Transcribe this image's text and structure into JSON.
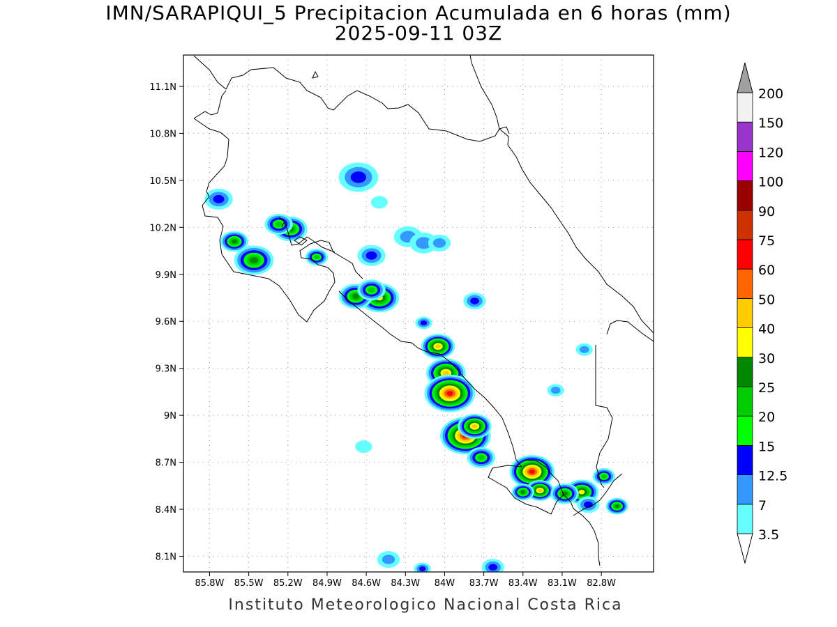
{
  "title": "IMN/SARAPIQUI_5 Precipitacion Acumulada en 6 horas (mm)",
  "subtitle": "2025-09-11 03Z",
  "footer": "Instituto Meteorologico Nacional Costa Rica",
  "map": {
    "lon_range": [
      -86.0,
      -82.4
    ],
    "lat_range": [
      8.0,
      11.3
    ],
    "x_ticks": [
      "85.8W",
      "85.5W",
      "85.2W",
      "84.9W",
      "84.6W",
      "84.3W",
      "84W",
      "83.7W",
      "83.4W",
      "83.1W",
      "82.8W"
    ],
    "y_ticks": [
      "11.1N",
      "10.8N",
      "10.5N",
      "10.2N",
      "9.9N",
      "9.6N",
      "9.3N",
      "9N",
      "8.7N",
      "8.4N",
      "8.1N"
    ],
    "x_tick_values": [
      -85.8,
      -85.5,
      -85.2,
      -84.9,
      -84.6,
      -84.3,
      -84.0,
      -83.7,
      -83.4,
      -83.1,
      -82.8
    ],
    "y_tick_values": [
      11.1,
      10.8,
      10.5,
      10.2,
      9.9,
      9.6,
      9.3,
      9.0,
      8.7,
      8.4,
      8.1
    ],
    "grid": "dotted"
  },
  "colorbar": {
    "levels": [
      "3.5",
      "7",
      "12.5",
      "15",
      "20",
      "25",
      "30",
      "40",
      "50",
      "60",
      "75",
      "90",
      "100",
      "120",
      "150",
      "200"
    ],
    "colors": [
      "#66ffff",
      "#3399ff",
      "#0000ff",
      "#00ff00",
      "#00cc00",
      "#008800",
      "#ffff00",
      "#ffcc00",
      "#ff6600",
      "#ff0000",
      "#cc3300",
      "#990000",
      "#ff00ff",
      "#9933cc",
      "#f2f2f2",
      "#a0a0a0"
    ]
  },
  "rain_cells": [
    {
      "lon": -85.46,
      "lat": 9.99,
      "peak": 25,
      "size": 0.07
    },
    {
      "lon": -85.61,
      "lat": 10.11,
      "peak": 25,
      "size": 0.05
    },
    {
      "lon": -85.18,
      "lat": 10.19,
      "peak": 25,
      "size": 0.06
    },
    {
      "lon": -85.27,
      "lat": 10.22,
      "peak": 20,
      "size": 0.05
    },
    {
      "lon": -85.73,
      "lat": 10.38,
      "peak": 12.5,
      "size": 0.05
    },
    {
      "lon": -84.66,
      "lat": 10.52,
      "peak": 12.5,
      "size": 0.07
    },
    {
      "lon": -84.98,
      "lat": 10.01,
      "peak": 20,
      "size": 0.04
    },
    {
      "lon": -84.56,
      "lat": 10.02,
      "peak": 12.5,
      "size": 0.05
    },
    {
      "lon": -84.28,
      "lat": 10.14,
      "peak": 7,
      "size": 0.05
    },
    {
      "lon": -84.5,
      "lat": 9.75,
      "peak": 30,
      "size": 0.07
    },
    {
      "lon": -84.68,
      "lat": 9.76,
      "peak": 25,
      "size": 0.06
    },
    {
      "lon": -84.56,
      "lat": 9.8,
      "peak": 20,
      "size": 0.05
    },
    {
      "lon": -83.77,
      "lat": 9.73,
      "peak": 12.5,
      "size": 0.04
    },
    {
      "lon": -84.16,
      "lat": 9.59,
      "peak": 12.5,
      "size": 0.03
    },
    {
      "lon": -84.05,
      "lat": 9.44,
      "peak": 40,
      "size": 0.06
    },
    {
      "lon": -83.99,
      "lat": 9.27,
      "peak": 40,
      "size": 0.07
    },
    {
      "lon": -83.96,
      "lat": 9.14,
      "peak": 60,
      "size": 0.09
    },
    {
      "lon": -83.84,
      "lat": 8.87,
      "peak": 60,
      "size": 0.09
    },
    {
      "lon": -83.77,
      "lat": 8.93,
      "peak": 40,
      "size": 0.06
    },
    {
      "lon": -83.72,
      "lat": 8.73,
      "peak": 20,
      "size": 0.05
    },
    {
      "lon": -83.33,
      "lat": 8.64,
      "peak": 60,
      "size": 0.08
    },
    {
      "lon": -83.27,
      "lat": 8.52,
      "peak": 40,
      "size": 0.05
    },
    {
      "lon": -83.4,
      "lat": 8.51,
      "peak": 25,
      "size": 0.04
    },
    {
      "lon": -82.95,
      "lat": 8.51,
      "peak": 30,
      "size": 0.06
    },
    {
      "lon": -83.08,
      "lat": 8.5,
      "peak": 25,
      "size": 0.05
    },
    {
      "lon": -82.78,
      "lat": 8.61,
      "peak": 20,
      "size": 0.04
    },
    {
      "lon": -82.68,
      "lat": 8.42,
      "peak": 25,
      "size": 0.04
    },
    {
      "lon": -82.9,
      "lat": 8.43,
      "peak": 12.5,
      "size": 0.04
    },
    {
      "lon": -84.16,
      "lat": 10.1,
      "peak": 7,
      "size": 0.05
    },
    {
      "lon": -84.04,
      "lat": 10.1,
      "peak": 7,
      "size": 0.04
    },
    {
      "lon": -83.63,
      "lat": 8.03,
      "peak": 12.5,
      "size": 0.04
    },
    {
      "lon": -84.43,
      "lat": 8.08,
      "peak": 7,
      "size": 0.04
    },
    {
      "lon": -84.17,
      "lat": 8.02,
      "peak": 12.5,
      "size": 0.03
    },
    {
      "lon": -83.15,
      "lat": 9.16,
      "peak": 7,
      "size": 0.03
    },
    {
      "lon": -82.93,
      "lat": 9.42,
      "peak": 7,
      "size": 0.03
    },
    {
      "lon": -84.62,
      "lat": 8.8,
      "peak": 3.5,
      "size": 0.03
    },
    {
      "lon": -84.5,
      "lat": 10.36,
      "peak": 3.5,
      "size": 0.03
    }
  ]
}
